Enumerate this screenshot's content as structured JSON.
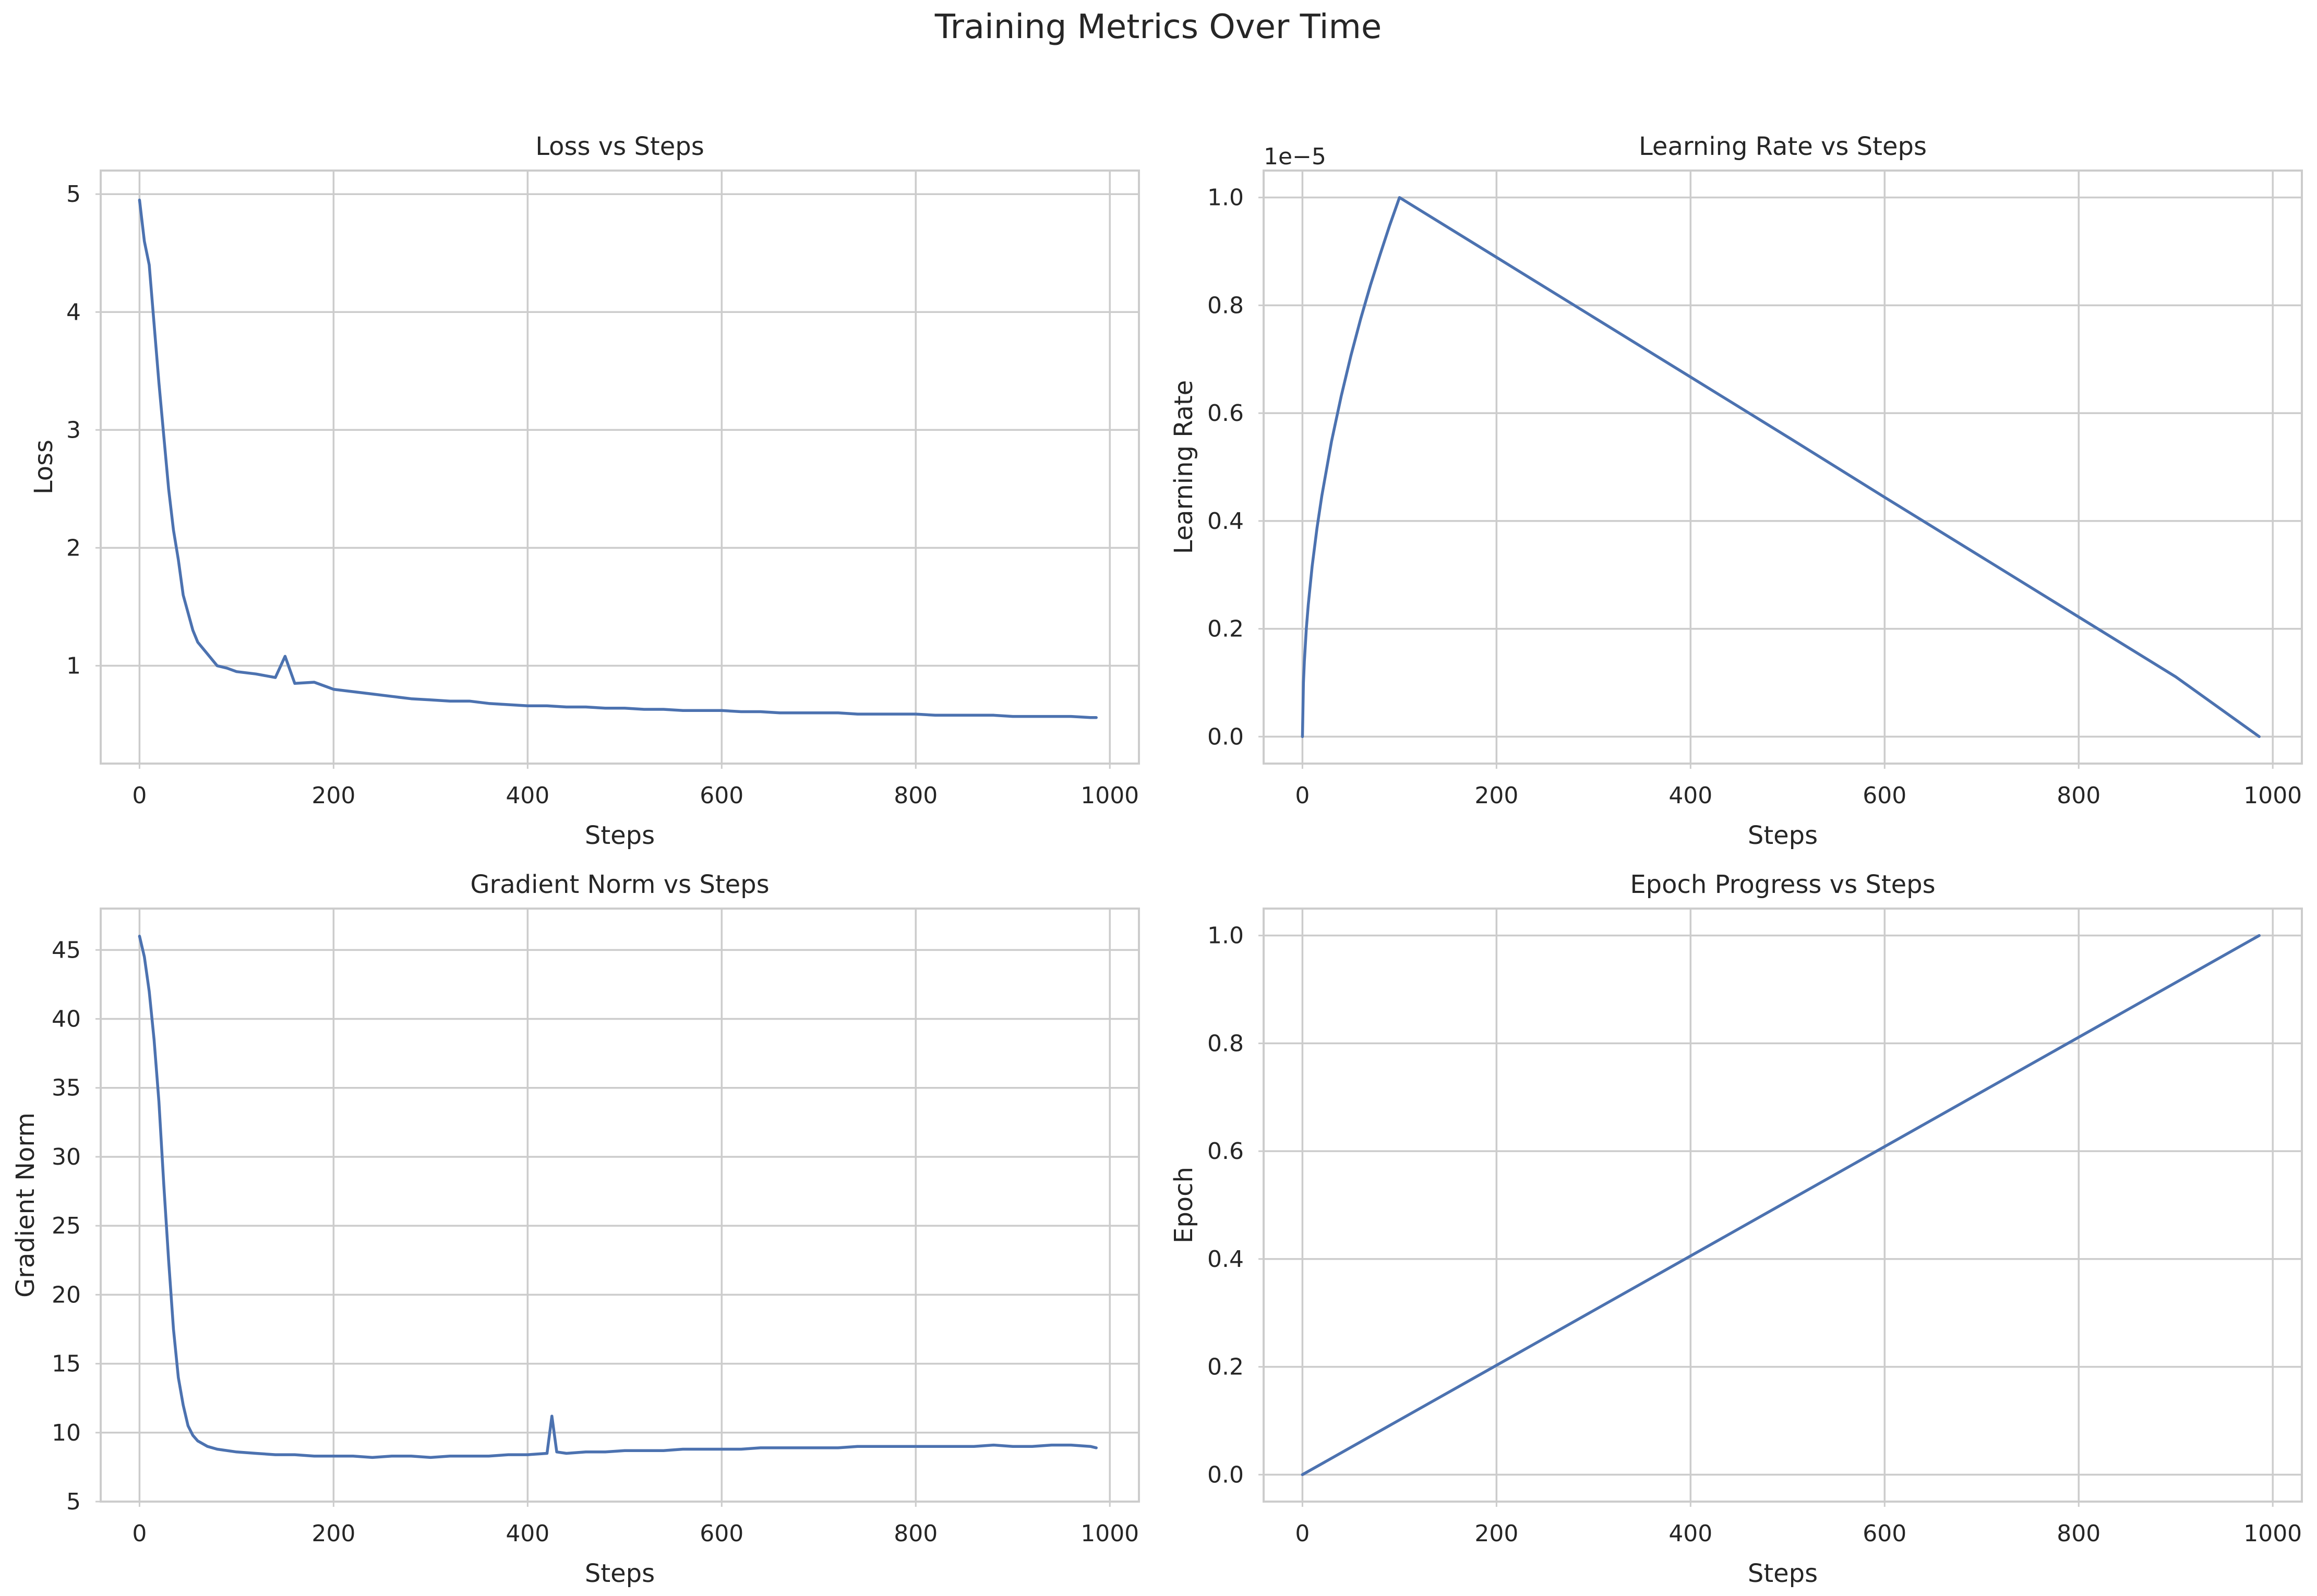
{
  "figure": {
    "title": "Training Metrics Over Time"
  },
  "colors": {
    "series": "#4c72b0",
    "grid": "#cccccc",
    "text": "#262626",
    "background": "#ffffff"
  },
  "chart_data": [
    {
      "type": "line",
      "title": "Loss vs Steps",
      "xlabel": "Steps",
      "ylabel": "Loss",
      "xlim": [
        -40,
        1030
      ],
      "ylim": [
        0.17,
        5.2
      ],
      "xticks": [
        0,
        200,
        400,
        600,
        800,
        1000
      ],
      "yticks": [
        1,
        2,
        3,
        4,
        5
      ],
      "ytick_labels": [
        "1",
        "2",
        "3",
        "4",
        "5"
      ],
      "grid": true,
      "series": [
        {
          "color": "#4c72b0",
          "x": [
            0,
            5,
            10,
            15,
            20,
            25,
            30,
            35,
            40,
            45,
            50,
            55,
            60,
            70,
            80,
            90,
            100,
            120,
            140,
            150,
            160,
            180,
            200,
            220,
            240,
            260,
            280,
            300,
            320,
            340,
            360,
            380,
            400,
            420,
            440,
            460,
            480,
            500,
            520,
            540,
            560,
            580,
            600,
            620,
            640,
            660,
            680,
            700,
            720,
            740,
            760,
            780,
            800,
            820,
            840,
            860,
            880,
            900,
            920,
            940,
            960,
            980,
            986
          ],
          "y": [
            4.95,
            4.6,
            4.4,
            3.9,
            3.4,
            2.95,
            2.5,
            2.15,
            1.9,
            1.6,
            1.45,
            1.3,
            1.2,
            1.1,
            1.0,
            0.98,
            0.95,
            0.93,
            0.9,
            1.08,
            0.85,
            0.86,
            0.8,
            0.78,
            0.76,
            0.74,
            0.72,
            0.71,
            0.7,
            0.7,
            0.68,
            0.67,
            0.66,
            0.66,
            0.65,
            0.65,
            0.64,
            0.64,
            0.63,
            0.63,
            0.62,
            0.62,
            0.62,
            0.61,
            0.61,
            0.6,
            0.6,
            0.6,
            0.6,
            0.59,
            0.59,
            0.59,
            0.59,
            0.58,
            0.58,
            0.58,
            0.58,
            0.57,
            0.57,
            0.57,
            0.57,
            0.56,
            0.56
          ]
        }
      ]
    },
    {
      "type": "line",
      "title": "Learning Rate vs Steps",
      "xlabel": "Steps",
      "ylabel": "Learning Rate",
      "offset_label": "1e−5",
      "xlim": [
        -40,
        1030
      ],
      "ylim": [
        -0.05,
        1.05
      ],
      "xticks": [
        0,
        200,
        400,
        600,
        800,
        1000
      ],
      "yticks": [
        0.0,
        0.2,
        0.4,
        0.6,
        0.8,
        1.0
      ],
      "ytick_labels": [
        "0.0",
        "0.2",
        "0.4",
        "0.6",
        "0.8",
        "1.0"
      ],
      "grid": true,
      "series": [
        {
          "color": "#4c72b0",
          "x": [
            0,
            1,
            2,
            4,
            6,
            10,
            15,
            20,
            30,
            40,
            50,
            60,
            70,
            80,
            90,
            100,
            200,
            300,
            400,
            500,
            600,
            700,
            800,
            900,
            986
          ],
          "y": [
            0.0,
            0.1,
            0.14,
            0.2,
            0.245,
            0.316,
            0.387,
            0.447,
            0.548,
            0.632,
            0.707,
            0.775,
            0.837,
            0.894,
            0.949,
            1.0,
            0.889,
            0.778,
            0.667,
            0.556,
            0.444,
            0.333,
            0.222,
            0.111,
            0.0
          ]
        }
      ]
    },
    {
      "type": "line",
      "title": "Gradient Norm vs Steps",
      "xlabel": "Steps",
      "ylabel": "Gradient Norm",
      "xlim": [
        -40,
        1030
      ],
      "ylim": [
        5.0,
        48.0
      ],
      "xticks": [
        0,
        200,
        400,
        600,
        800,
        1000
      ],
      "yticks": [
        5,
        10,
        15,
        20,
        25,
        30,
        35,
        40,
        45
      ],
      "ytick_labels": [
        "5",
        "10",
        "15",
        "20",
        "25",
        "30",
        "35",
        "40",
        "45"
      ],
      "grid": true,
      "series": [
        {
          "color": "#4c72b0",
          "x": [
            0,
            5,
            10,
            15,
            20,
            25,
            30,
            35,
            40,
            45,
            50,
            55,
            60,
            70,
            80,
            100,
            120,
            140,
            160,
            180,
            200,
            220,
            240,
            260,
            280,
            300,
            320,
            340,
            360,
            380,
            400,
            420,
            425,
            430,
            440,
            460,
            480,
            500,
            520,
            540,
            560,
            580,
            600,
            620,
            640,
            660,
            680,
            700,
            720,
            740,
            760,
            780,
            800,
            820,
            840,
            860,
            880,
            900,
            920,
            940,
            960,
            980,
            986
          ],
          "y": [
            46.0,
            44.5,
            42.0,
            38.5,
            34.0,
            28.0,
            22.5,
            17.5,
            14.0,
            12.0,
            10.5,
            9.8,
            9.4,
            9.0,
            8.8,
            8.6,
            8.5,
            8.4,
            8.4,
            8.3,
            8.3,
            8.3,
            8.2,
            8.3,
            8.3,
            8.2,
            8.3,
            8.3,
            8.3,
            8.4,
            8.4,
            8.5,
            11.2,
            8.6,
            8.5,
            8.6,
            8.6,
            8.7,
            8.7,
            8.7,
            8.8,
            8.8,
            8.8,
            8.8,
            8.9,
            8.9,
            8.9,
            8.9,
            8.9,
            9.0,
            9.0,
            9.0,
            9.0,
            9.0,
            9.0,
            9.0,
            9.1,
            9.0,
            9.0,
            9.1,
            9.1,
            9.0,
            8.9
          ]
        }
      ]
    },
    {
      "type": "line",
      "title": "Epoch Progress vs Steps",
      "xlabel": "Steps",
      "ylabel": "Epoch",
      "xlim": [
        -40,
        1030
      ],
      "ylim": [
        -0.05,
        1.05
      ],
      "xticks": [
        0,
        200,
        400,
        600,
        800,
        1000
      ],
      "yticks": [
        0.0,
        0.2,
        0.4,
        0.6,
        0.8,
        1.0
      ],
      "ytick_labels": [
        "0.0",
        "0.2",
        "0.4",
        "0.6",
        "0.8",
        "1.0"
      ],
      "grid": true,
      "series": [
        {
          "color": "#4c72b0",
          "x": [
            0,
            986
          ],
          "y": [
            0.0,
            1.0
          ]
        }
      ]
    }
  ]
}
